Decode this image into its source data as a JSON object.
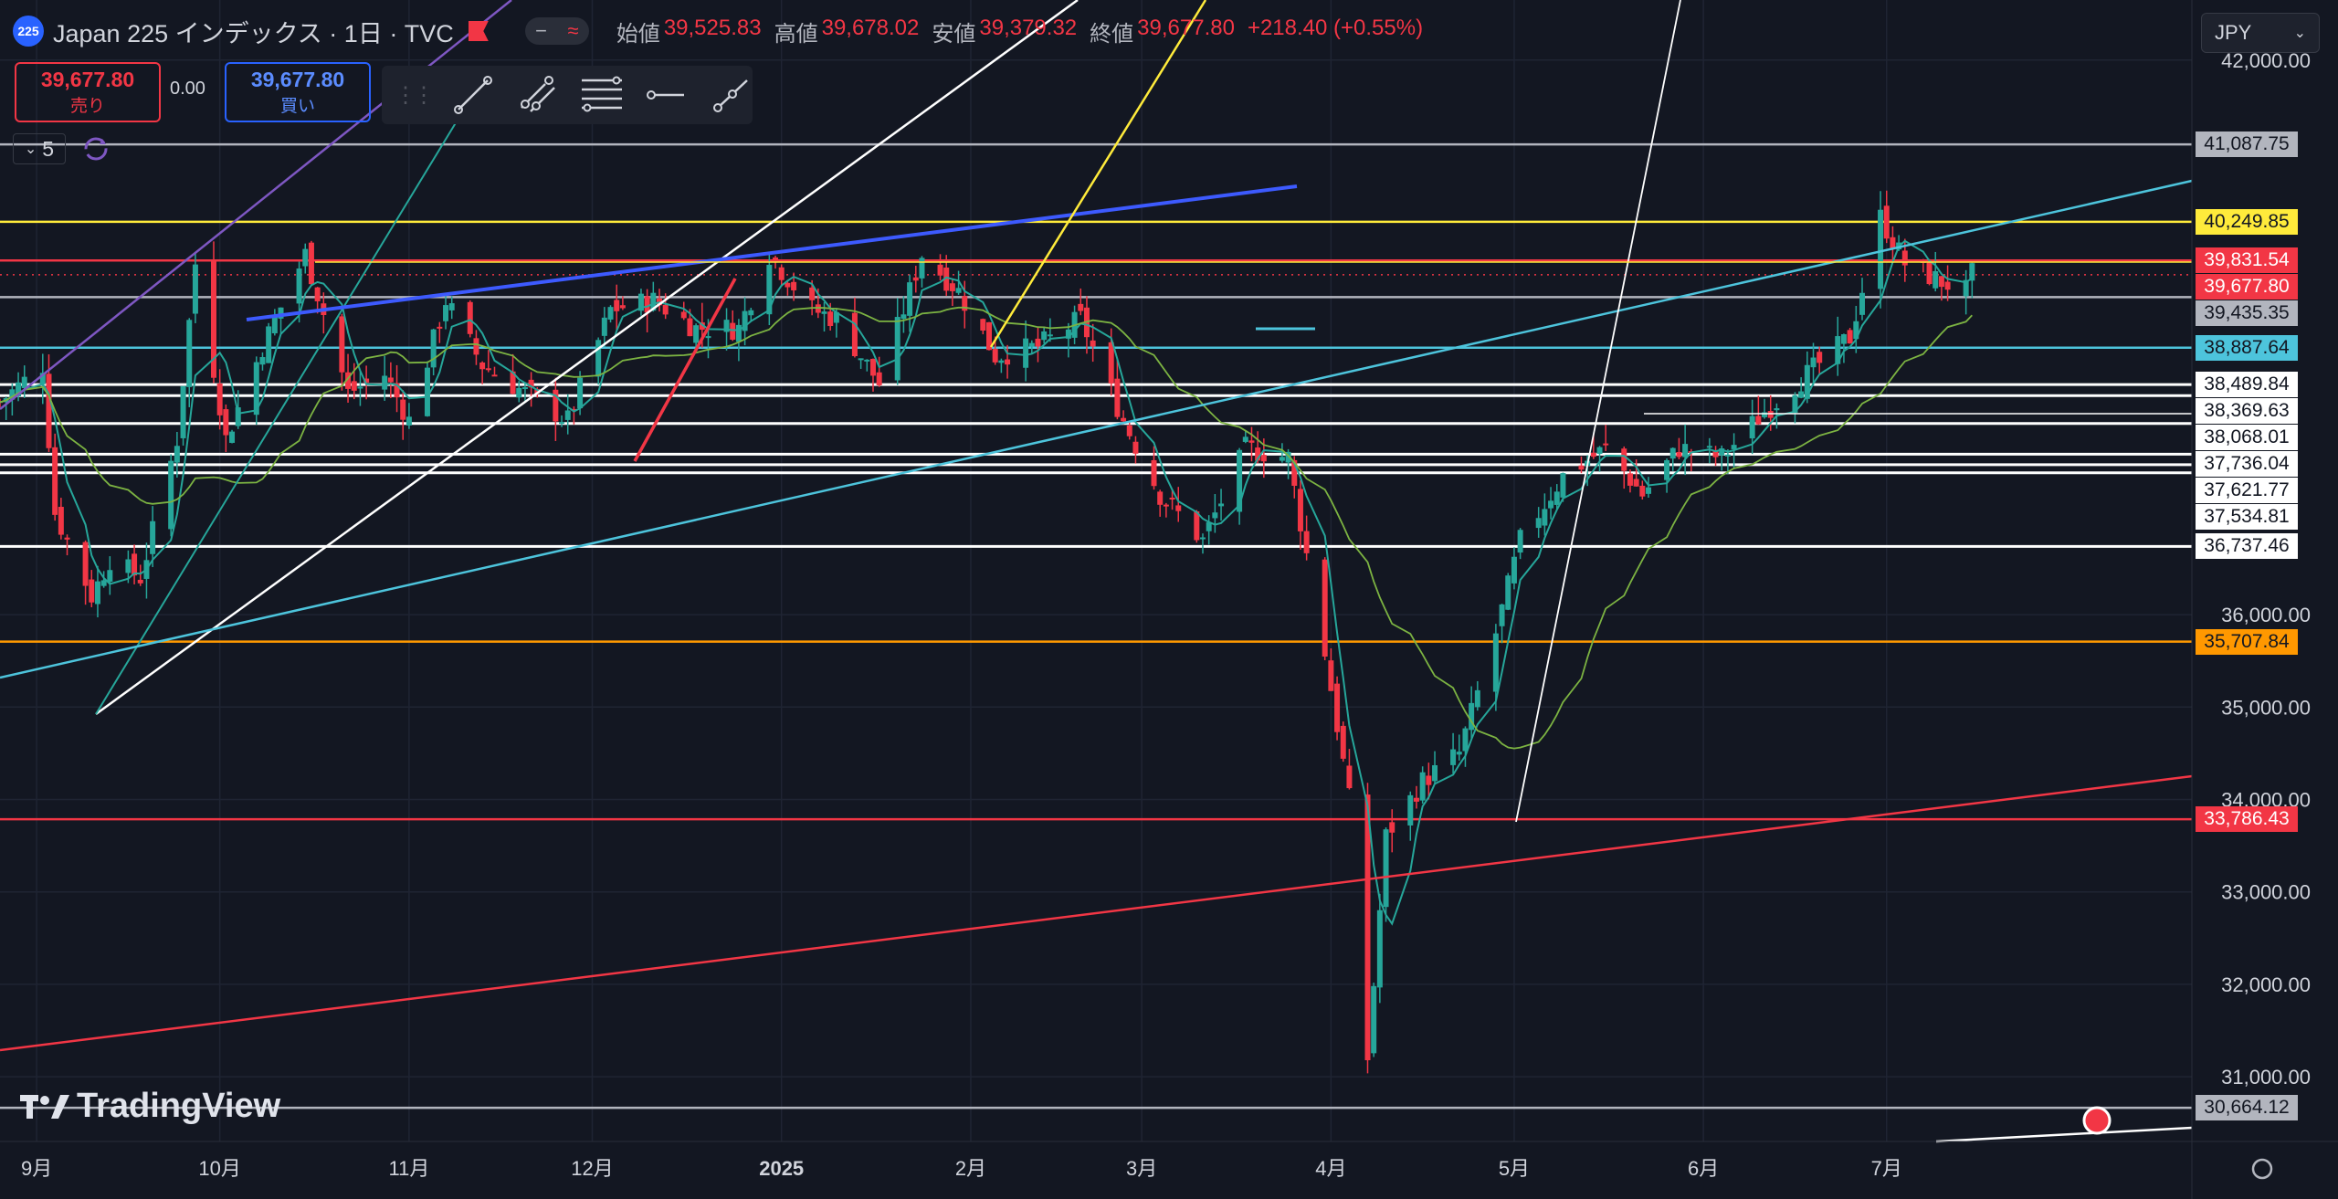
{
  "header": {
    "symbol_badge": "225",
    "title": "Japan 225 インデックス · 1日 · TVC",
    "pill_minus": "−",
    "pill_wave": "≈",
    "ohlc": [
      {
        "label": "始値",
        "value": "39,525.83"
      },
      {
        "label": "高値",
        "value": "39,678.02"
      },
      {
        "label": "安値",
        "value": "39,379.32"
      },
      {
        "label": "終値",
        "value": "39,677.80"
      }
    ],
    "change": "+218.40 (+0.55%)"
  },
  "trade": {
    "sell_price": "39,677.80",
    "sell_label": "売り",
    "spread": "0.00",
    "buy_price": "39,677.80",
    "buy_label": "買い"
  },
  "indicator_count": "5",
  "currency": "JPY",
  "watermark": "TradingView",
  "colors": {
    "background": "#131722",
    "up": "#26a69a",
    "down": "#f23645",
    "grid": "#1f2433",
    "axis_text": "#d1d4dc"
  },
  "chart_data": {
    "type": "candlestick",
    "y_axis": {
      "min": 30300,
      "max": 42650,
      "ticks": [
        31000,
        32000,
        33000,
        34000,
        35000,
        36000,
        42000
      ],
      "tick_labels": [
        "31,000.00",
        "32,000.00",
        "33,000.00",
        "34,000.00",
        "35,000.00",
        "36,000.00",
        "42,000.00"
      ]
    },
    "x_axis": {
      "start": "2024-08-26",
      "end": "2025-08-20",
      "ticks": [
        {
          "date": "2024-09-01",
          "label": "9月"
        },
        {
          "date": "2024-10-01",
          "label": "10月"
        },
        {
          "date": "2024-11-01",
          "label": "11月"
        },
        {
          "date": "2024-12-01",
          "label": "12月"
        },
        {
          "date": "2025-01-01",
          "label": "2025"
        },
        {
          "date": "2025-02-01",
          "label": "2月"
        },
        {
          "date": "2025-03-01",
          "label": "3月"
        },
        {
          "date": "2025-04-01",
          "label": "4月"
        },
        {
          "date": "2025-05-01",
          "label": "5月"
        },
        {
          "date": "2025-06-01",
          "label": "6月"
        },
        {
          "date": "2025-07-01",
          "label": "7月"
        }
      ]
    },
    "close_path": [
      [
        "2024-08-26",
        38300
      ],
      [
        "2024-09-02",
        38700
      ],
      [
        "2024-09-04",
        37100
      ],
      [
        "2024-09-10",
        36200
      ],
      [
        "2024-09-13",
        36600
      ],
      [
        "2024-09-18",
        36400
      ],
      [
        "2024-09-24",
        37900
      ],
      [
        "2024-09-27",
        39800
      ],
      [
        "2024-10-02",
        37900
      ],
      [
        "2024-10-08",
        38900
      ],
      [
        "2024-10-15",
        39900
      ],
      [
        "2024-10-22",
        38400
      ],
      [
        "2024-10-28",
        38600
      ],
      [
        "2024-11-01",
        38100
      ],
      [
        "2024-11-07",
        39400
      ],
      [
        "2024-11-13",
        38700
      ],
      [
        "2024-11-20",
        38400
      ],
      [
        "2024-11-27",
        38100
      ],
      [
        "2024-12-04",
        39300
      ],
      [
        "2024-12-11",
        39400
      ],
      [
        "2024-12-18",
        39100
      ],
      [
        "2024-12-25",
        39100
      ],
      [
        "2024-12-30",
        39900
      ],
      [
        "2025-01-06",
        39300
      ],
      [
        "2025-01-10",
        39200
      ],
      [
        "2025-01-17",
        38500
      ],
      [
        "2025-01-24",
        39900
      ],
      [
        "2025-01-30",
        39500
      ],
      [
        "2025-02-05",
        38800
      ],
      [
        "2025-02-12",
        38900
      ],
      [
        "2025-02-19",
        39200
      ],
      [
        "2025-02-26",
        38100
      ],
      [
        "2025-03-04",
        37300
      ],
      [
        "2025-03-11",
        36800
      ],
      [
        "2025-03-18",
        37800
      ],
      [
        "2025-03-25",
        37700
      ],
      [
        "2025-03-31",
        35600
      ],
      [
        "2025-04-04",
        34000
      ],
      [
        "2025-04-07",
        31200
      ],
      [
        "2025-04-10",
        33600
      ],
      [
        "2025-04-16",
        34200
      ],
      [
        "2025-04-22",
        34500
      ],
      [
        "2025-04-28",
        35800
      ],
      [
        "2025-05-02",
        36800
      ],
      [
        "2025-05-09",
        37500
      ],
      [
        "2025-05-16",
        37800
      ],
      [
        "2025-05-22",
        37300
      ],
      [
        "2025-05-28",
        37800
      ],
      [
        "2025-06-04",
        37700
      ],
      [
        "2025-06-11",
        38200
      ],
      [
        "2025-06-18",
        38600
      ],
      [
        "2025-06-25",
        39000
      ],
      [
        "2025-06-30",
        40300
      ],
      [
        "2025-07-04",
        39800
      ],
      [
        "2025-07-10",
        39600
      ],
      [
        "2025-07-14",
        39500
      ],
      [
        "2025-07-15",
        39678
      ]
    ],
    "price_levels": [
      {
        "value": 41087.75,
        "label": "41,087.75",
        "color": "#b2b5be"
      },
      {
        "value": 40249.85,
        "label": "40,249.85",
        "color": "#ffeb3b"
      },
      {
        "value": 39831.54,
        "label": "39,831.54",
        "color": "#f23645"
      },
      {
        "value": 39677.8,
        "label": "39,677.80",
        "color": "#f23645"
      },
      {
        "value": 39435.35,
        "label": "39,435.35",
        "color": "#b2b5be"
      },
      {
        "value": 38887.64,
        "label": "38,887.64",
        "color": "#4dc4dc"
      },
      {
        "value": 38489.84,
        "label": "38,489.84",
        "color": "#ffffff"
      },
      {
        "value": 38369.63,
        "label": "38,369.63",
        "color": "#ffffff"
      },
      {
        "value": 38068.01,
        "label": "38,068.01",
        "color": "#ffffff"
      },
      {
        "value": 37736.04,
        "label": "37,736.04",
        "color": "#ffffff"
      },
      {
        "value": 37621.77,
        "label": "37,621.77",
        "color": "#ffffff"
      },
      {
        "value": 37534.81,
        "label": "37,534.81",
        "color": "#ffffff"
      },
      {
        "value": 36737.46,
        "label": "36,737.46",
        "color": "#ffffff"
      },
      {
        "value": 35707.84,
        "label": "35,707.84",
        "color": "#ff9800"
      },
      {
        "value": 33786.43,
        "label": "33,786.43",
        "color": "#f23645"
      },
      {
        "value": 30664.12,
        "label": "30,664.12",
        "color": "#b2b5be"
      }
    ]
  }
}
